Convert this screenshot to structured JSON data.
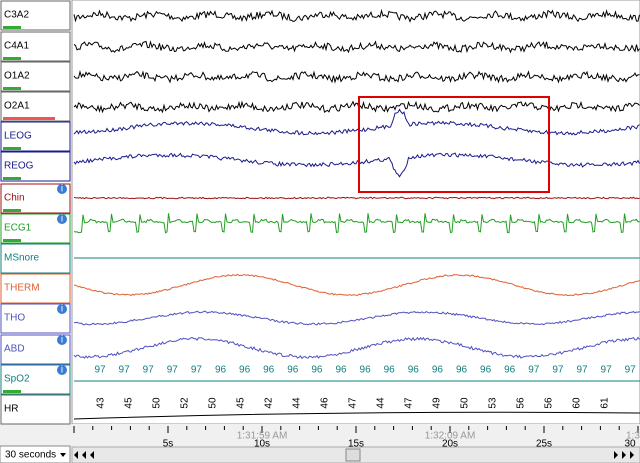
{
  "channels": [
    {
      "label": "C3A2"
    },
    {
      "label": "C4A1"
    },
    {
      "label": "O1A2"
    },
    {
      "label": "O2A1"
    },
    {
      "label": "LEOG"
    },
    {
      "label": "REOG"
    },
    {
      "label": "Chin"
    },
    {
      "label": "ECG1"
    },
    {
      "label": "MSnore"
    },
    {
      "label": "THERM"
    },
    {
      "label": "THO"
    },
    {
      "label": "ABD"
    },
    {
      "label": "SpO2"
    },
    {
      "label": "HR"
    }
  ],
  "spo2": {
    "values": [
      "97",
      "97",
      "97",
      "97",
      "97",
      "96",
      "96",
      "96",
      "96",
      "96",
      "96",
      "96",
      "96",
      "96",
      "96",
      "96",
      "96",
      "96",
      "97",
      "97",
      "97",
      "97",
      "97"
    ]
  },
  "hr": {
    "values": [
      "43",
      "45",
      "50",
      "52",
      "50",
      "45",
      "42",
      "44",
      "46",
      "47",
      "44",
      "47",
      "49",
      "50",
      "53",
      "56",
      "56",
      "60",
      "61"
    ]
  },
  "time_axis": {
    "ticks": [
      "5s",
      "10s",
      "15s",
      "20s",
      "25s",
      "30"
    ],
    "clock": [
      "1:31:59 AM",
      "1:32:09 AM",
      "1:32:1"
    ]
  },
  "info": "i",
  "window": "30 seconds"
}
